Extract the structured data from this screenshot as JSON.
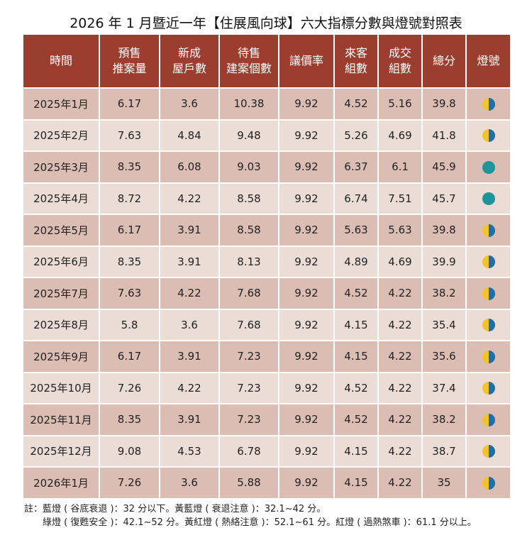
{
  "title": "2026 年 1 月暨近一年【住展風向球】六大指標分數與燈號對照表",
  "headers": [
    [
      "時間"
    ],
    [
      "預售",
      "推案量"
    ],
    [
      "新成",
      "屋戶數"
    ],
    [
      "待售",
      "建案個數"
    ],
    [
      "議價率"
    ],
    [
      "來客",
      "組數"
    ],
    [
      "成交",
      "組數"
    ],
    [
      "總分"
    ],
    [
      "燈號"
    ]
  ],
  "rows": [
    [
      "2025年1月",
      "6.17",
      "3.6",
      "10.38",
      "9.92",
      "4.52",
      "5.16",
      "39.8",
      "yellow-blue"
    ],
    [
      "2025年2月",
      "7.63",
      "4.84",
      "9.48",
      "9.92",
      "5.26",
      "4.69",
      "41.8",
      "yellow-blue"
    ],
    [
      "2025年3月",
      "8.35",
      "6.08",
      "9.03",
      "9.92",
      "6.37",
      "6.1",
      "45.9",
      "green"
    ],
    [
      "2025年4月",
      "8.72",
      "4.22",
      "8.58",
      "9.92",
      "6.74",
      "7.51",
      "45.7",
      "green"
    ],
    [
      "2025年5月",
      "6.17",
      "3.91",
      "8.58",
      "9.92",
      "5.63",
      "5.63",
      "39.8",
      "yellow-blue"
    ],
    [
      "2025年6月",
      "8.35",
      "3.91",
      "8.13",
      "9.92",
      "4.89",
      "4.69",
      "39.9",
      "yellow-blue"
    ],
    [
      "2025年7月",
      "7.63",
      "4.22",
      "7.68",
      "9.92",
      "4.52",
      "4.22",
      "38.2",
      "yellow-blue"
    ],
    [
      "2025年8月",
      "5.8",
      "3.6",
      "7.68",
      "9.92",
      "4.15",
      "4.22",
      "35.4",
      "yellow-blue"
    ],
    [
      "2025年9月",
      "6.17",
      "3.91",
      "7.23",
      "9.92",
      "4.15",
      "4.22",
      "35.6",
      "yellow-blue"
    ],
    [
      "2025年10月",
      "7.26",
      "4.22",
      "7.23",
      "9.92",
      "4.52",
      "4.22",
      "37.4",
      "yellow-blue"
    ],
    [
      "2025年11月",
      "8.35",
      "3.91",
      "7.23",
      "9.92",
      "4.52",
      "4.22",
      "38.2",
      "yellow-blue"
    ],
    [
      "2025年12月",
      "9.08",
      "4.53",
      "6.78",
      "9.92",
      "4.15",
      "4.22",
      "38.7",
      "yellow-blue"
    ],
    [
      "2026年1月",
      "7.26",
      "3.6",
      "5.88",
      "9.92",
      "4.15",
      "4.22",
      "35",
      "yellow-blue"
    ]
  ],
  "colors": {
    "header": "#9c3e2f",
    "yellow": "#f2c230",
    "blue": "#1d6fa5",
    "green": "#1e9599"
  },
  "notes": [
    "註：藍燈 ( 谷底衰退 )：32 分以下。黃藍燈 ( 衰退注意 )：32.1~42 分。",
    "綠燈 ( 復甦安全 )：42.1~52 分。黃紅燈 ( 熱絡注意 )：52.1~61 分。紅燈 ( 過熱煞車 )：61.1 分以上。"
  ]
}
